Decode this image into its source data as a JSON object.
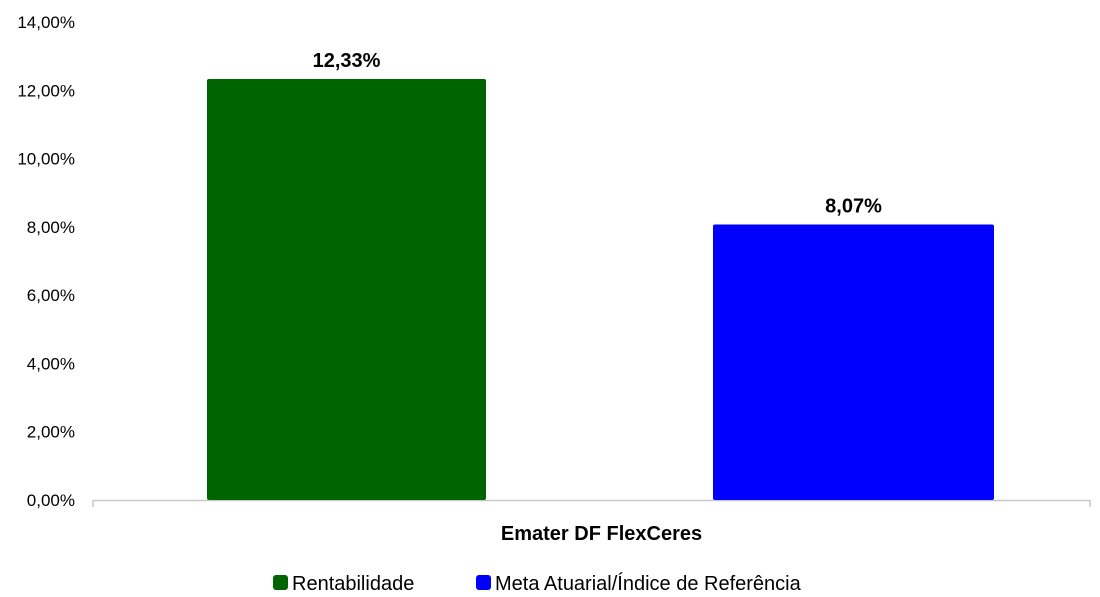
{
  "chart_data": {
    "type": "bar",
    "categories": [
      "Ematér DF FlexCeres"
    ],
    "category_label": "Emater DF FlexCeres",
    "series": [
      {
        "name": "Rentabilidade",
        "values": [
          12.33
        ],
        "label": "12,33%",
        "color": "#006400"
      },
      {
        "name": "Meta Atuarial/Índice de Referência",
        "values": [
          8.07
        ],
        "label": "8,07%",
        "color": "#0000FF"
      }
    ],
    "ylim": [
      0,
      14
    ],
    "yticks": [
      0,
      2,
      4,
      6,
      8,
      10,
      12,
      14
    ],
    "ytick_labels": [
      "0,00%",
      "2,00%",
      "4,00%",
      "6,00%",
      "8,00%",
      "10,00%",
      "12,00%",
      "14,00%"
    ],
    "grid": false,
    "legend_position": "bottom"
  }
}
